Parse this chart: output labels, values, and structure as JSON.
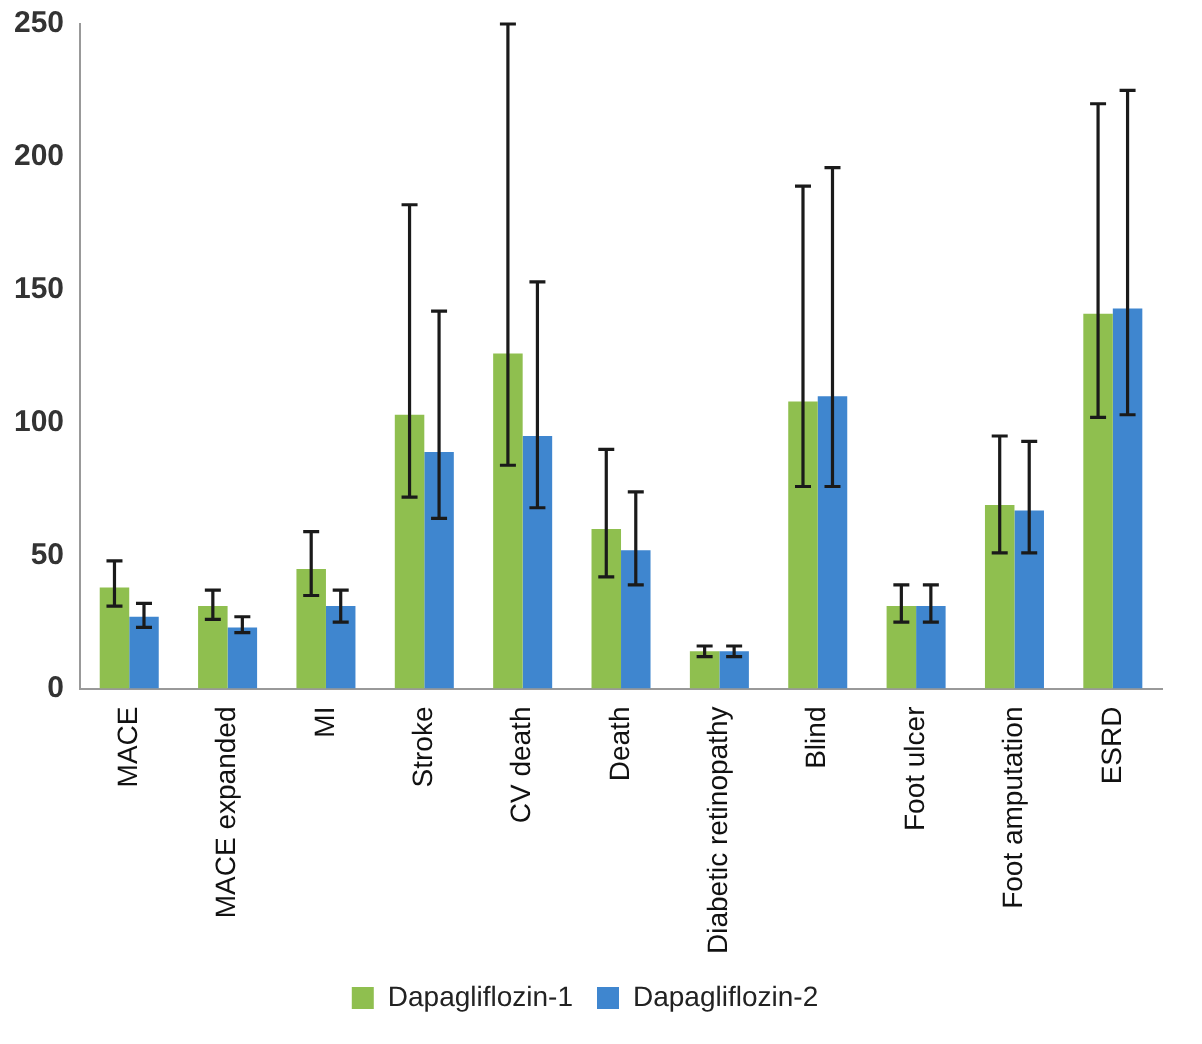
{
  "chart_data": {
    "type": "bar",
    "categories": [
      "MACE",
      "MACE expanded",
      "MI",
      "Stroke",
      "CV death",
      "Death",
      "Diabetic retinopathy",
      "Blind",
      "Foot ulcer",
      "Foot amputation",
      "ESRD"
    ],
    "series": [
      {
        "name": "Dapagliflozin-1",
        "color": "#8fbf4f",
        "values": [
          38,
          31,
          45,
          103,
          126,
          60,
          14,
          108,
          31,
          69,
          141
        ],
        "errors": [
          [
            31,
            48
          ],
          [
            26,
            37
          ],
          [
            35,
            59
          ],
          [
            72,
            182
          ],
          [
            84,
            250
          ],
          [
            42,
            90
          ],
          [
            12,
            16
          ],
          [
            76,
            189
          ],
          [
            25,
            39
          ],
          [
            51,
            95
          ],
          [
            102,
            220
          ]
        ]
      },
      {
        "name": "Dapagliflozin-2",
        "color": "#3f86cf",
        "values": [
          27,
          23,
          31,
          89,
          95,
          52,
          14,
          110,
          31,
          67,
          143
        ],
        "errors": [
          [
            23,
            32
          ],
          [
            21,
            27
          ],
          [
            25,
            37
          ],
          [
            64,
            142
          ],
          [
            68,
            153
          ],
          [
            39,
            74
          ],
          [
            12,
            16
          ],
          [
            76,
            196
          ],
          [
            25,
            39
          ],
          [
            51,
            93
          ],
          [
            103,
            225
          ]
        ]
      }
    ],
    "ylim": [
      0,
      250
    ],
    "yticks": [
      0,
      50,
      100,
      150,
      200,
      250
    ],
    "grid": false,
    "legend": "bottom"
  }
}
